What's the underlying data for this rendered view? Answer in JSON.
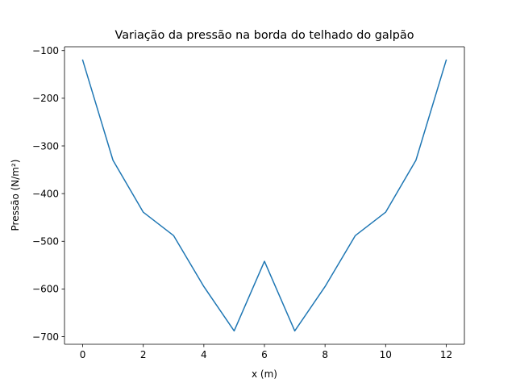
{
  "chart_data": {
    "type": "line",
    "title": "Variação da pressão na borda do telhado do galpão",
    "xlabel": "x (m)",
    "ylabel": "Pressão (N/m²)",
    "xlim": [
      -0.6,
      12.6
    ],
    "ylim": [
      -716,
      -92
    ],
    "xticks": [
      0,
      2,
      4,
      6,
      8,
      10,
      12
    ],
    "xtick_labels": [
      "0",
      "2",
      "4",
      "6",
      "8",
      "10",
      "12"
    ],
    "yticks": [
      -100,
      -200,
      -300,
      -400,
      -500,
      -600,
      -700
    ],
    "ytick_labels": [
      "−100",
      "−200",
      "−300",
      "−400",
      "−500",
      "−600",
      "−700"
    ],
    "grid": false,
    "series": [
      {
        "color": "#1f77b4",
        "x": [
          0,
          1,
          2,
          3,
          4,
          5,
          6,
          7,
          8,
          9,
          10,
          11,
          12
        ],
        "y": [
          -120,
          -330,
          -439,
          -488,
          -595,
          -688,
          -542,
          -688,
          -595,
          -488,
          -439,
          -330,
          -120
        ]
      }
    ]
  }
}
